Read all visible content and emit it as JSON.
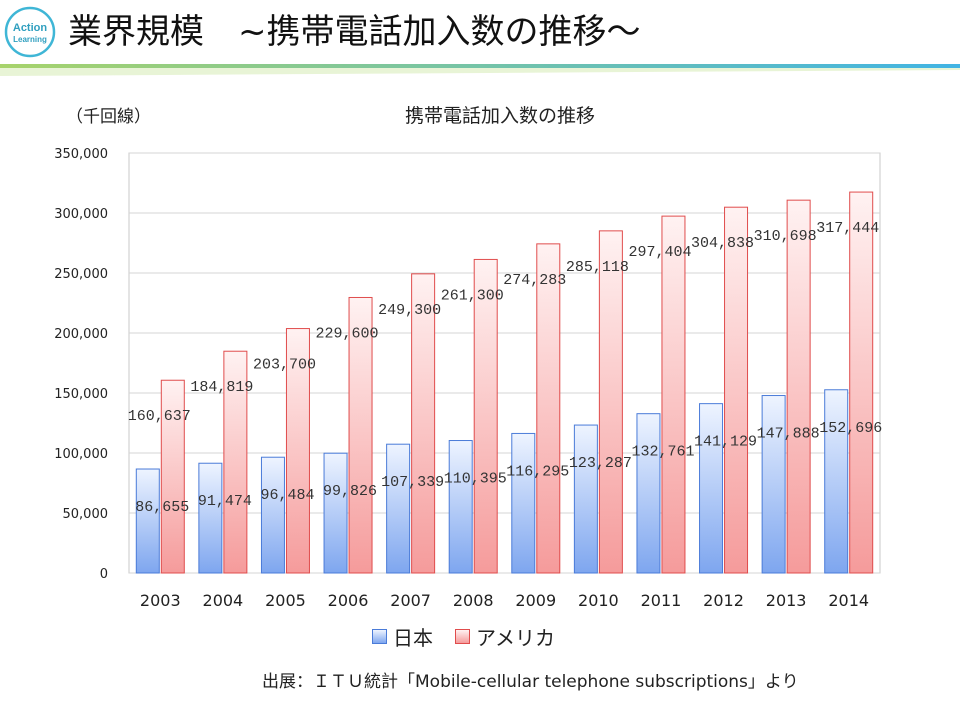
{
  "header": {
    "logo_text_1": "Action",
    "logo_text_2": "Learning",
    "title": "業界規模　~携帯電話加入数の推移～"
  },
  "colors": {
    "jp_fill_top": "#eef4ff",
    "jp_fill_bottom": "#7ea6ef",
    "jp_stroke": "#4a7bd8",
    "us_fill_top": "#fff2f2",
    "us_fill_bottom": "#f59b9b",
    "us_stroke": "#e04c4c",
    "rule_green": "#a7d36b",
    "rule_blue": "#41b4e4"
  },
  "chart_data": {
    "type": "bar",
    "title": "携帯電話加入数の推移",
    "unit_label": "（千回線）",
    "categories": [
      "2003",
      "2004",
      "2005",
      "2006",
      "2007",
      "2008",
      "2009",
      "2010",
      "2011",
      "2012",
      "2013",
      "2014"
    ],
    "series": [
      {
        "name": "日本",
        "values": [
          86655,
          91474,
          96484,
          99826,
          107339,
          110395,
          116295,
          123287,
          132761,
          141129,
          147888,
          152696
        ],
        "labels": [
          "86,655",
          "91,474",
          "96,484",
          "99,826",
          "107,339",
          "110,395",
          "116,295",
          "123,287",
          "132,761",
          "141,129",
          "147,888",
          "152,696"
        ]
      },
      {
        "name": "アメリカ",
        "values": [
          160637,
          184819,
          203700,
          229600,
          249300,
          261300,
          274283,
          285118,
          297404,
          304838,
          310698,
          317444
        ],
        "labels": [
          "160,637",
          "184,819",
          "203,700",
          "229,600",
          "249,300",
          "261,300",
          "274,283",
          "285,118",
          "297,404",
          "304,838",
          "310,698",
          "317,444"
        ]
      }
    ],
    "ylim": [
      0,
      350000
    ],
    "yticks": [
      0,
      50000,
      100000,
      150000,
      200000,
      250000,
      300000,
      350000
    ],
    "ytick_labels": [
      "0",
      "50,000",
      "100,000",
      "150,000",
      "200,000",
      "250,000",
      "300,000",
      "350,000"
    ],
    "grid": true,
    "legend": "bottom"
  },
  "source": "出展：ＩＴＵ統計「Mobile-cellular telephone subscriptions」より"
}
